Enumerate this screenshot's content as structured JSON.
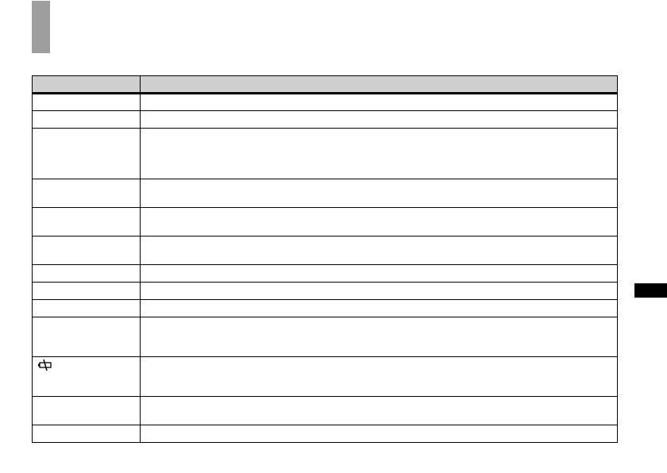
{
  "table": {
    "headers": [
      "",
      ""
    ],
    "rows": [
      {
        "c1": "",
        "c2": ""
      },
      {
        "c1": "",
        "c2": ""
      },
      {
        "c1": "",
        "c2": ""
      },
      {
        "c1": "",
        "c2": ""
      },
      {
        "c1": "",
        "c2": ""
      },
      {
        "c1": "",
        "c2": ""
      },
      {
        "c1": "",
        "c2": ""
      },
      {
        "c1": "",
        "c2": ""
      },
      {
        "c1": "",
        "c2": ""
      },
      {
        "c1": "",
        "c2": ""
      },
      {
        "c1": "",
        "c2": "",
        "icon": "battery-empty-icon"
      },
      {
        "c1": "",
        "c2": ""
      },
      {
        "c1": "",
        "c2": ""
      }
    ]
  },
  "colors": {
    "thumb": "#9e9e9e",
    "header": "#cfcfcf",
    "side_tab": "#000000"
  }
}
